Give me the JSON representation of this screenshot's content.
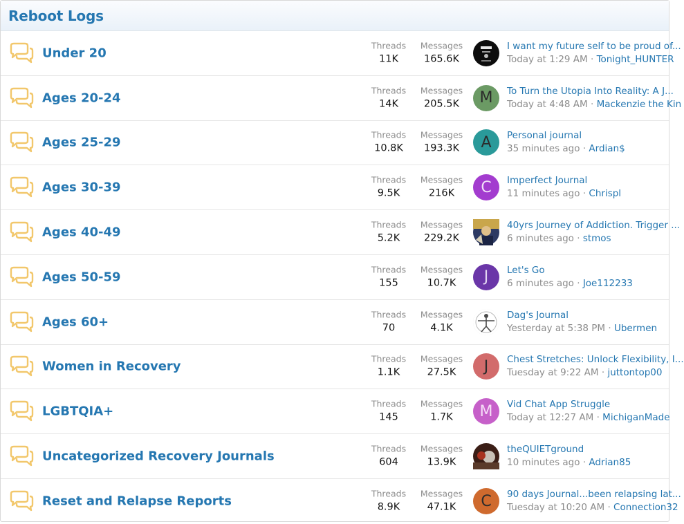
{
  "block": {
    "title": "Reboot Logs"
  },
  "labels": {
    "threads": "Threads",
    "messages": "Messages",
    "separator": "·"
  },
  "colors": {
    "link": "#2577b1",
    "icon": "#f2c76b",
    "muted": "#8c8c8c"
  },
  "nodes": [
    {
      "title": "Under 20",
      "threads": "11K",
      "messages": "165.6K",
      "avatar": {
        "type": "image",
        "icon": "life-badge-avatar"
      },
      "last": {
        "title": "I want my future self to be proud of...",
        "time": "Today at 1:29 AM",
        "user": "Tonight_HUNTER"
      }
    },
    {
      "title": "Ages 20-24",
      "threads": "14K",
      "messages": "205.5K",
      "avatar": {
        "type": "letter",
        "letter": "M",
        "color": "#6b9a64"
      },
      "last": {
        "title": "To Turn the Utopia Into Reality: A J...",
        "time": "Today at 4:48 AM",
        "user": "Mackenzie the Kin"
      }
    },
    {
      "title": "Ages 25-29",
      "threads": "10.8K",
      "messages": "193.3K",
      "avatar": {
        "type": "letter",
        "letter": "A",
        "color": "#2a9a9a"
      },
      "last": {
        "title": "Personal journal",
        "time": "35 minutes ago",
        "user": "Ardian$"
      }
    },
    {
      "title": "Ages 30-39",
      "threads": "9.5K",
      "messages": "216K",
      "avatar": {
        "type": "letter",
        "letter": "C",
        "color": "#a33ccf",
        "textColor": "#f1e0f8"
      },
      "last": {
        "title": "Imperfect Journal",
        "time": "11 minutes ago",
        "user": "Chrispl"
      }
    },
    {
      "title": "Ages 40-49",
      "threads": "5.2K",
      "messages": "229.2K",
      "avatar": {
        "type": "image",
        "icon": "painting-avatar"
      },
      "last": {
        "title": "40yrs Journey of Addiction. Trigger ...",
        "time": "6 minutes ago",
        "user": "stmos"
      }
    },
    {
      "title": "Ages 50-59",
      "threads": "155",
      "messages": "10.7K",
      "avatar": {
        "type": "letter",
        "letter": "J",
        "color": "#6a36a8",
        "textColor": "#e3d6f2"
      },
      "last": {
        "title": "Let's Go",
        "time": "6 minutes ago",
        "user": "Joe112233"
      }
    },
    {
      "title": "Ages 60+",
      "threads": "70",
      "messages": "4.1K",
      "avatar": {
        "type": "image",
        "icon": "vitruvian-man-avatar"
      },
      "last": {
        "title": "Dag's Journal",
        "time": "Yesterday at 5:38 PM",
        "user": "Ubermen"
      }
    },
    {
      "title": "Women in Recovery",
      "threads": "1.1K",
      "messages": "27.5K",
      "avatar": {
        "type": "letter",
        "letter": "J",
        "color": "#d26b6b"
      },
      "last": {
        "title": "Chest Stretches: Unlock Flexibility, I...",
        "time": "Tuesday at 9:22 AM",
        "user": "juttontop00"
      }
    },
    {
      "title": "LGBTQIA+",
      "threads": "145",
      "messages": "1.7K",
      "avatar": {
        "type": "letter",
        "letter": "M",
        "color": "#c660c9",
        "textColor": "#f5dcf6"
      },
      "last": {
        "title": "Vid Chat App Struggle",
        "time": "Today at 12:27 AM",
        "user": "MichiganMade"
      }
    },
    {
      "title": "Uncategorized Recovery Journals",
      "threads": "604",
      "messages": "13.9K",
      "avatar": {
        "type": "image",
        "icon": "dark-photo-avatar"
      },
      "last": {
        "title": "theQUIETground",
        "time": "10 minutes ago",
        "user": "Adrian85"
      }
    },
    {
      "title": "Reset and Relapse Reports",
      "threads": "8.9K",
      "messages": "47.1K",
      "avatar": {
        "type": "letter",
        "letter": "C",
        "color": "#cf6a2e"
      },
      "last": {
        "title": "90 days Journal...been relapsing lat...",
        "time": "Tuesday at 10:20 AM",
        "user": "Connection32"
      }
    }
  ]
}
